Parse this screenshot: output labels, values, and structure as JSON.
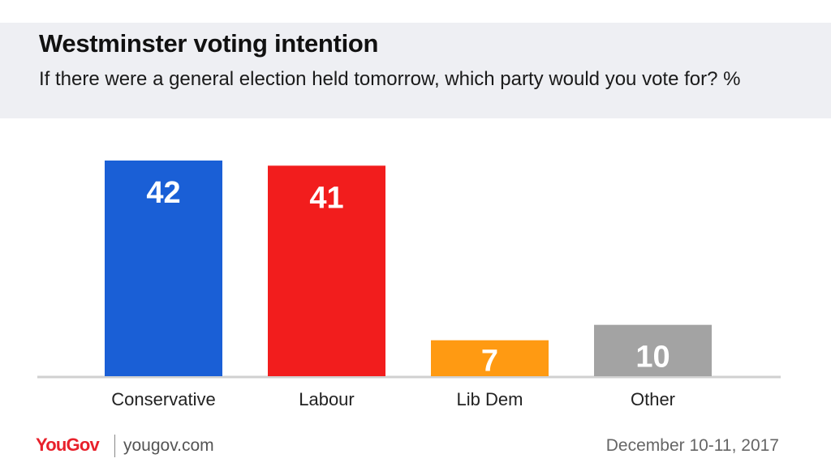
{
  "header": {
    "title": "Westminster voting intention",
    "subtitle": "If there were a general election held tomorrow, which party would you vote for? %"
  },
  "footer": {
    "brand": "YouGov",
    "url": "yougov.com",
    "date": "December 10-11, 2017"
  },
  "colors": {
    "conservative": "#1a5fd6",
    "labour": "#f21d1d",
    "lib_dem": "#ff9a12",
    "other": "#a3a3a3",
    "baseline": "#d0d0d0"
  },
  "chart_data": {
    "type": "bar",
    "title": "Westminster voting intention",
    "subtitle": "If there were a general election held tomorrow, which party would you vote for? %",
    "categories": [
      "Conservative",
      "Labour",
      "Lib Dem",
      "Other"
    ],
    "values": [
      42,
      41,
      7,
      10
    ],
    "data_labels": [
      "42",
      "41",
      "7",
      "10"
    ],
    "bar_colors": [
      "#1a5fd6",
      "#f21d1d",
      "#ff9a12",
      "#a3a3a3"
    ],
    "xlabel": "",
    "ylabel": "",
    "ylim": [
      0,
      42
    ],
    "grid": false,
    "legend": "none"
  }
}
